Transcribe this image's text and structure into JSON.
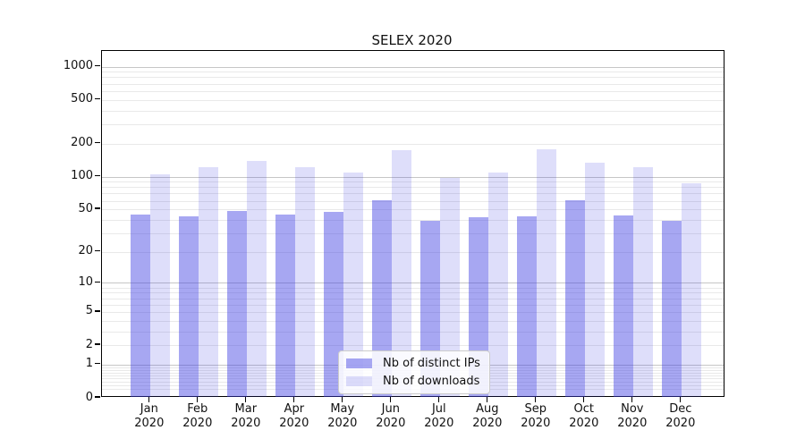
{
  "title": "SELEX 2020",
  "legend": {
    "items": [
      {
        "label": "Nb of distinct IPs",
        "swatch_color": "#a7a6f3"
      },
      {
        "label": "Nb of downloads",
        "swatch_color": "#dcdbfa"
      }
    ]
  },
  "y_axis": {
    "tick_labels": [
      "0",
      "1",
      "2",
      "5",
      "10",
      "20",
      "50",
      "100",
      "200",
      "500",
      "1000"
    ]
  },
  "x_axis": {
    "months": [
      "Jan",
      "Feb",
      "Mar",
      "Apr",
      "May",
      "Jun",
      "Jul",
      "Aug",
      "Sep",
      "Oct",
      "Nov",
      "Dec"
    ],
    "year": "2020"
  },
  "chart_data": {
    "type": "bar",
    "title": "SELEX 2020",
    "categories": [
      "Jan 2020",
      "Feb 2020",
      "Mar 2020",
      "Apr 2020",
      "May 2020",
      "Jun 2020",
      "Jul 2020",
      "Aug 2020",
      "Sep 2020",
      "Oct 2020",
      "Nov 2020",
      "Dec 2020"
    ],
    "series": [
      {
        "name": "Nb of distinct IPs",
        "color": "#a7a6f3",
        "values": [
          45,
          43,
          48,
          45,
          47,
          61,
          39,
          42,
          43,
          61,
          44,
          39
        ]
      },
      {
        "name": "Nb of downloads",
        "color": "#dcdbfa",
        "values": [
          104,
          123,
          138,
          122,
          109,
          175,
          98,
          108,
          178,
          133,
          122,
          87
        ]
      }
    ],
    "yscale": "log1p",
    "y_ticks": [
      0,
      1,
      2,
      5,
      10,
      20,
      50,
      100,
      200,
      500,
      1000
    ],
    "ylim": [
      0,
      1385
    ],
    "grid": "both",
    "legend_position": "lower center"
  },
  "colors": {
    "bar_base_rgb": "60,60,226",
    "bar_ips_alpha": 0.45,
    "bar_downloads_alpha": 0.17,
    "bar_ips_hex": "#a7a6f3",
    "bar_downloads_hex": "#dcdbfa",
    "grid_major": "#c6c6c6",
    "grid_minor": "#e9e9e9",
    "frame": "#000000",
    "text": "#111111",
    "background": "#ffffff"
  }
}
